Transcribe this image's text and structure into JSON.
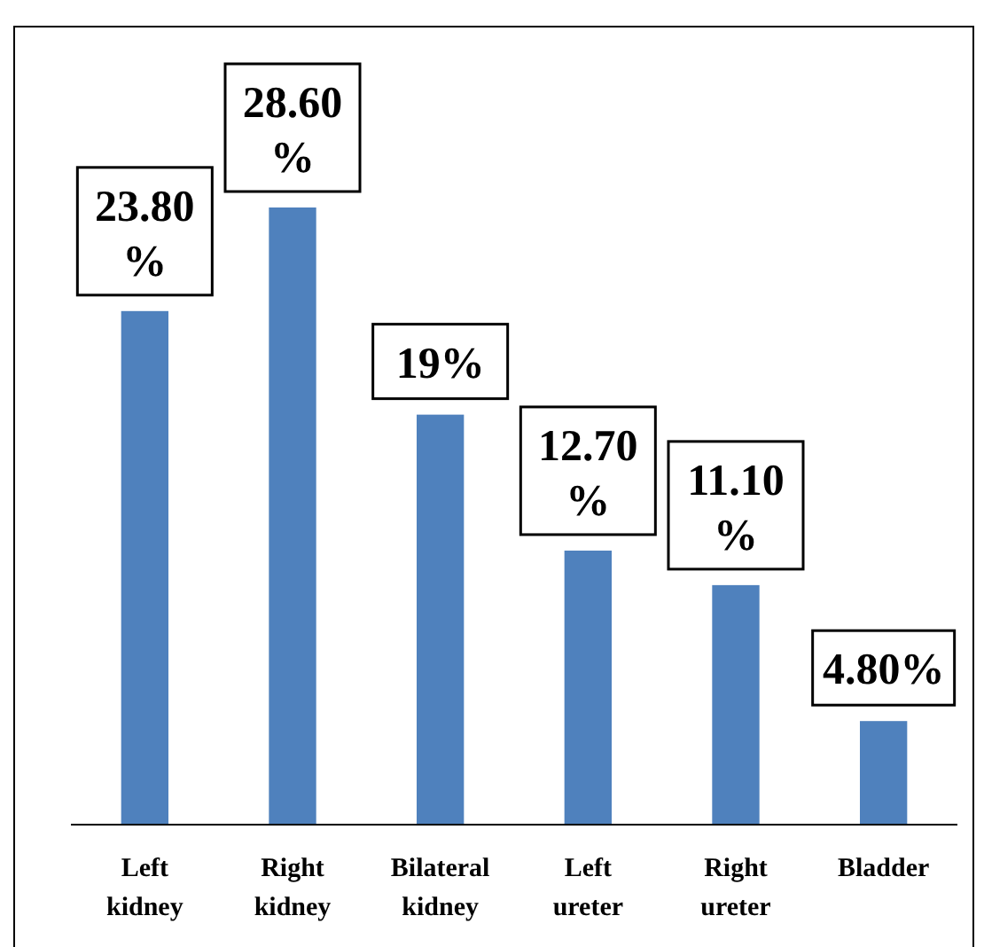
{
  "chart_data": {
    "type": "bar",
    "categories": [
      "Left kidney",
      "Right kidney",
      "Bilateral kidney",
      "Left ureter",
      "Right ureter",
      "Bladder"
    ],
    "values": [
      23.8,
      28.6,
      19,
      12.7,
      11.1,
      4.8
    ],
    "value_labels": [
      "23.80%",
      "28.60%",
      "19%",
      "12.70%",
      "11.10%",
      "4.80%"
    ],
    "color": "#4f81bd"
  }
}
